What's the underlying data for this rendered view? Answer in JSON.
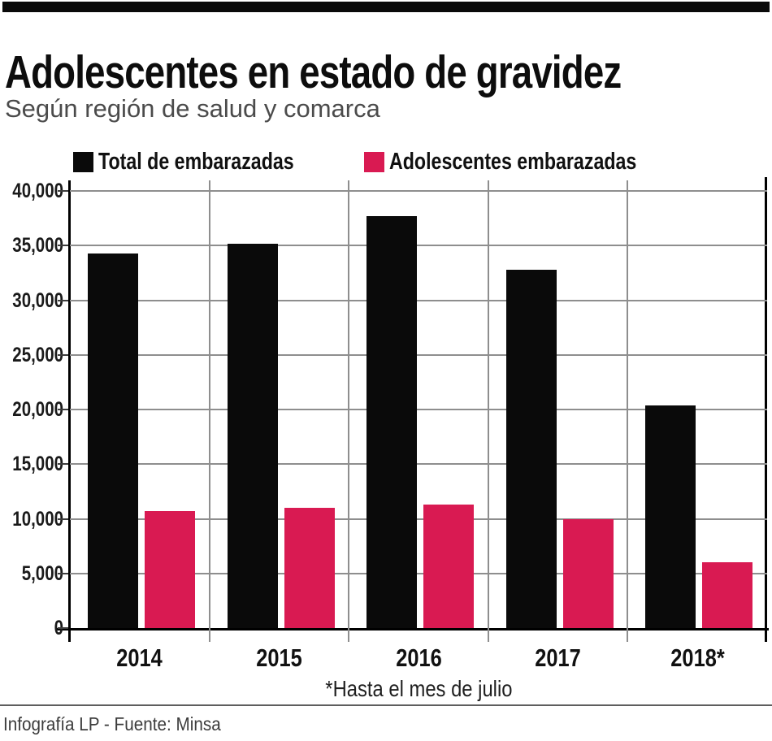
{
  "header": {
    "title": "Adolescentes en estado de gravidez",
    "subtitle": "Según región de salud y comarca"
  },
  "legend": {
    "items": [
      {
        "label": "Total de embarazadas",
        "color": "#0a0a0a"
      },
      {
        "label": "Adolescentes embarazadas",
        "color": "#d91a52"
      }
    ]
  },
  "chart_data": {
    "type": "bar",
    "categories": [
      "2014",
      "2015",
      "2016",
      "2017",
      "2018*"
    ],
    "series": [
      {
        "name": "Total de embarazadas",
        "color": "#0a0a0a",
        "values": [
          34300,
          35200,
          37700,
          32800,
          20400
        ]
      },
      {
        "name": "Adolescentes embarazadas",
        "color": "#d91a52",
        "values": [
          10700,
          11000,
          11300,
          10000,
          6000
        ]
      }
    ],
    "ylim": [
      0,
      40000
    ],
    "ytick_step": 5000,
    "ytick_labels": [
      "0",
      "5,000",
      "10,000",
      "15,000",
      "20,000",
      "25,000",
      "30,000",
      "35,000",
      "40,000"
    ],
    "grid": true,
    "legend_position": "top",
    "xlabel": "",
    "ylabel": ""
  },
  "footnote": "*Hasta el mes de julio",
  "credit": "Infografía LP - Fuente: Minsa"
}
